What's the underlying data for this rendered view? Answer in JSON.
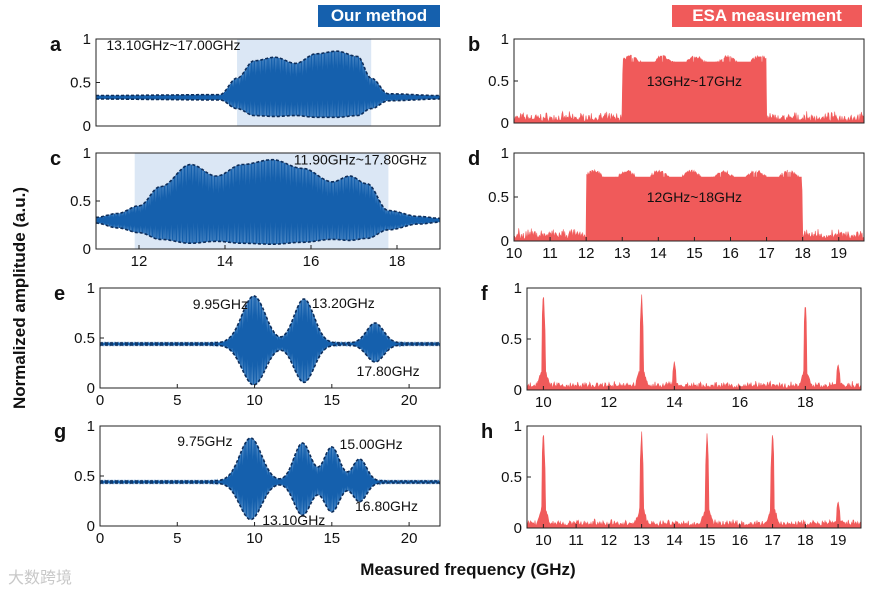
{
  "header": {
    "left_tag": "Our method",
    "right_tag": "ESA measurement"
  },
  "shared_labels": {
    "ylabel": "Normalized amplitude (a.u.)",
    "xlabel": "Measured frequency (GHz)"
  },
  "watermark": "大数跨境",
  "colors": {
    "method": "#1560ad",
    "esa": "#f05a5a",
    "highlight": "#dbe7f5",
    "envelope": "#0d2d5a"
  },
  "chart_data": [
    {
      "panel": "a",
      "type": "line",
      "series_kind": "method",
      "xlim": [
        9,
        19
      ],
      "ylim": [
        0,
        1
      ],
      "yticks": [
        0,
        0.5,
        1
      ],
      "ytick_labels": [
        "0",
        "0.5",
        "1"
      ],
      "xticks": [],
      "xtick_labels": [],
      "band": [
        13.1,
        17.0
      ],
      "baseline": 0.33,
      "envelope_upper": [
        [
          9,
          0.35
        ],
        [
          12.6,
          0.36
        ],
        [
          13.1,
          0.55
        ],
        [
          13.6,
          0.75
        ],
        [
          14.2,
          0.79
        ],
        [
          14.8,
          0.72
        ],
        [
          15.4,
          0.83
        ],
        [
          16.0,
          0.86
        ],
        [
          16.6,
          0.8
        ],
        [
          17.0,
          0.55
        ],
        [
          17.5,
          0.37
        ],
        [
          19,
          0.35
        ]
      ],
      "envelope_lower": [
        [
          9,
          0.31
        ],
        [
          12.6,
          0.3
        ],
        [
          13.1,
          0.2
        ],
        [
          13.6,
          0.12
        ],
        [
          14.2,
          0.11
        ],
        [
          14.8,
          0.12
        ],
        [
          15.4,
          0.1
        ],
        [
          16.0,
          0.1
        ],
        [
          16.6,
          0.12
        ],
        [
          17.0,
          0.2
        ],
        [
          17.5,
          0.29
        ],
        [
          19,
          0.31
        ]
      ],
      "annotations": [
        {
          "text": "13.10GHz~17.00GHz",
          "x": 9.3,
          "y": 0.93
        }
      ]
    },
    {
      "panel": "b",
      "type": "area",
      "series_kind": "esa",
      "xlim": [
        10,
        19.7
      ],
      "ylim": [
        0,
        1
      ],
      "yticks": [
        0,
        0.5,
        1
      ],
      "ytick_labels": [
        "0",
        "0.5",
        "1"
      ],
      "xticks": [],
      "xtick_labels": [],
      "band": [
        13.0,
        17.0
      ],
      "plateau": 0.78,
      "noise": 0.12,
      "annotations": [
        {
          "text": "13GHz~17GHz",
          "x": 15.0,
          "y": 0.5
        }
      ]
    },
    {
      "panel": "c",
      "type": "line",
      "series_kind": "method",
      "xlim": [
        11,
        19
      ],
      "ylim": [
        0,
        1
      ],
      "yticks": [
        0,
        0.5,
        1
      ],
      "ytick_labels": [
        "0",
        "0.5",
        "1"
      ],
      "xticks": [
        12,
        14,
        16,
        18
      ],
      "xtick_labels": [
        "12",
        "14",
        "16",
        "18"
      ],
      "band": [
        11.9,
        17.8
      ],
      "baseline": 0.3,
      "envelope_upper": [
        [
          11,
          0.33
        ],
        [
          11.5,
          0.37
        ],
        [
          12.0,
          0.45
        ],
        [
          12.5,
          0.65
        ],
        [
          13.2,
          0.88
        ],
        [
          13.8,
          0.76
        ],
        [
          14.4,
          0.88
        ],
        [
          15.1,
          0.93
        ],
        [
          15.8,
          0.84
        ],
        [
          16.5,
          0.7
        ],
        [
          16.9,
          0.76
        ],
        [
          17.3,
          0.68
        ],
        [
          17.8,
          0.4
        ],
        [
          18.5,
          0.34
        ],
        [
          19,
          0.32
        ]
      ],
      "envelope_lower": [
        [
          11,
          0.27
        ],
        [
          11.5,
          0.22
        ],
        [
          12.0,
          0.17
        ],
        [
          12.5,
          0.1
        ],
        [
          13.2,
          0.06
        ],
        [
          13.8,
          0.08
        ],
        [
          14.4,
          0.06
        ],
        [
          15.1,
          0.05
        ],
        [
          15.8,
          0.07
        ],
        [
          16.5,
          0.1
        ],
        [
          16.9,
          0.09
        ],
        [
          17.3,
          0.11
        ],
        [
          17.8,
          0.2
        ],
        [
          18.5,
          0.26
        ],
        [
          19,
          0.28
        ]
      ],
      "annotations": [
        {
          "text": "11.90GHz~17.80GHz",
          "x": 15.6,
          "y": 0.93
        }
      ]
    },
    {
      "panel": "d",
      "type": "area",
      "series_kind": "esa",
      "xlim": [
        10,
        19.7
      ],
      "ylim": [
        0,
        1
      ],
      "yticks": [
        0,
        0.5,
        1
      ],
      "ytick_labels": [
        "0",
        "0.5",
        "1"
      ],
      "xticks": [
        10,
        11,
        12,
        13,
        14,
        15,
        16,
        17,
        18,
        19
      ],
      "xtick_labels": [
        "10",
        "11",
        "12",
        "13",
        "14",
        "15",
        "16",
        "17",
        "18",
        "19"
      ],
      "band": [
        12.0,
        18.0
      ],
      "plateau": 0.78,
      "noise": 0.14,
      "annotations": [
        {
          "text": "12GHz~18GHz",
          "x": 15.0,
          "y": 0.5
        }
      ]
    },
    {
      "panel": "e",
      "type": "line",
      "series_kind": "method",
      "xlim": [
        0,
        22
      ],
      "ylim": [
        0,
        1
      ],
      "yticks": [
        0,
        0.5,
        1
      ],
      "ytick_labels": [
        "0",
        "0.5",
        "1"
      ],
      "xticks": [
        0,
        5,
        10,
        15,
        20
      ],
      "xtick_labels": [
        "0",
        "5",
        "10",
        "15",
        "20"
      ],
      "baseline": 0.44,
      "peaks": [
        {
          "x": 9.95,
          "amp": 0.47,
          "sigma": 0.75
        },
        {
          "x": 13.2,
          "amp": 0.44,
          "sigma": 0.65
        },
        {
          "x": 17.8,
          "amp": 0.2,
          "sigma": 0.55
        }
      ],
      "annotations": [
        {
          "text": "9.95GHz",
          "x": 6.0,
          "y": 0.84
        },
        {
          "text": "13.20GHz",
          "x": 13.7,
          "y": 0.85
        },
        {
          "text": "17.80GHz",
          "x": 16.6,
          "y": 0.17
        }
      ]
    },
    {
      "panel": "f",
      "type": "area",
      "series_kind": "esa",
      "xlim": [
        9.5,
        19.7
      ],
      "ylim": [
        0,
        1
      ],
      "yticks": [
        0,
        0.5,
        1
      ],
      "ytick_labels": [
        "0",
        "0.5",
        "1"
      ],
      "xticks": [
        10,
        12,
        14,
        16,
        18
      ],
      "xtick_labels": [
        "10",
        "12",
        "14",
        "16",
        "18"
      ],
      "noise": 0.07,
      "spikes": [
        {
          "x": 10.0,
          "h": 0.98
        },
        {
          "x": 13.0,
          "h": 0.95
        },
        {
          "x": 14.0,
          "h": 0.28
        },
        {
          "x": 18.0,
          "h": 0.88
        },
        {
          "x": 19.0,
          "h": 0.26
        }
      ],
      "annotations": []
    },
    {
      "panel": "g",
      "type": "line",
      "series_kind": "method",
      "xlim": [
        0,
        22
      ],
      "ylim": [
        0,
        1
      ],
      "yticks": [
        0,
        0.5,
        1
      ],
      "ytick_labels": [
        "0",
        "0.5",
        "1"
      ],
      "xticks": [
        0,
        5,
        10,
        15,
        20
      ],
      "xtick_labels": [
        "0",
        "5",
        "10",
        "15",
        "20"
      ],
      "baseline": 0.44,
      "peaks": [
        {
          "x": 9.75,
          "amp": 0.43,
          "sigma": 0.7
        },
        {
          "x": 13.1,
          "amp": 0.38,
          "sigma": 0.55
        },
        {
          "x": 15.0,
          "amp": 0.34,
          "sigma": 0.5
        },
        {
          "x": 16.8,
          "amp": 0.22,
          "sigma": 0.45
        }
      ],
      "annotations": [
        {
          "text": "9.75GHz",
          "x": 5.0,
          "y": 0.85
        },
        {
          "text": "15.00GHz",
          "x": 15.5,
          "y": 0.82
        },
        {
          "text": "13.10GHz",
          "x": 10.5,
          "y": 0.06
        },
        {
          "text": "16.80GHz",
          "x": 16.5,
          "y": 0.2
        }
      ]
    },
    {
      "panel": "h",
      "type": "area",
      "series_kind": "esa",
      "xlim": [
        9.5,
        19.7
      ],
      "ylim": [
        0,
        1
      ],
      "yticks": [
        0,
        0.5,
        1
      ],
      "ytick_labels": [
        "0",
        "0.5",
        "1"
      ],
      "xticks": [
        10,
        11,
        12,
        13,
        14,
        15,
        16,
        17,
        18,
        19
      ],
      "xtick_labels": [
        "10",
        "11",
        "12",
        "13",
        "14",
        "15",
        "16",
        "17",
        "18",
        "19"
      ],
      "noise": 0.07,
      "spikes": [
        {
          "x": 10.0,
          "h": 0.98
        },
        {
          "x": 13.0,
          "h": 0.96
        },
        {
          "x": 15.0,
          "h": 0.95
        },
        {
          "x": 17.0,
          "h": 0.97
        },
        {
          "x": 19.0,
          "h": 0.27
        }
      ],
      "annotations": []
    }
  ]
}
